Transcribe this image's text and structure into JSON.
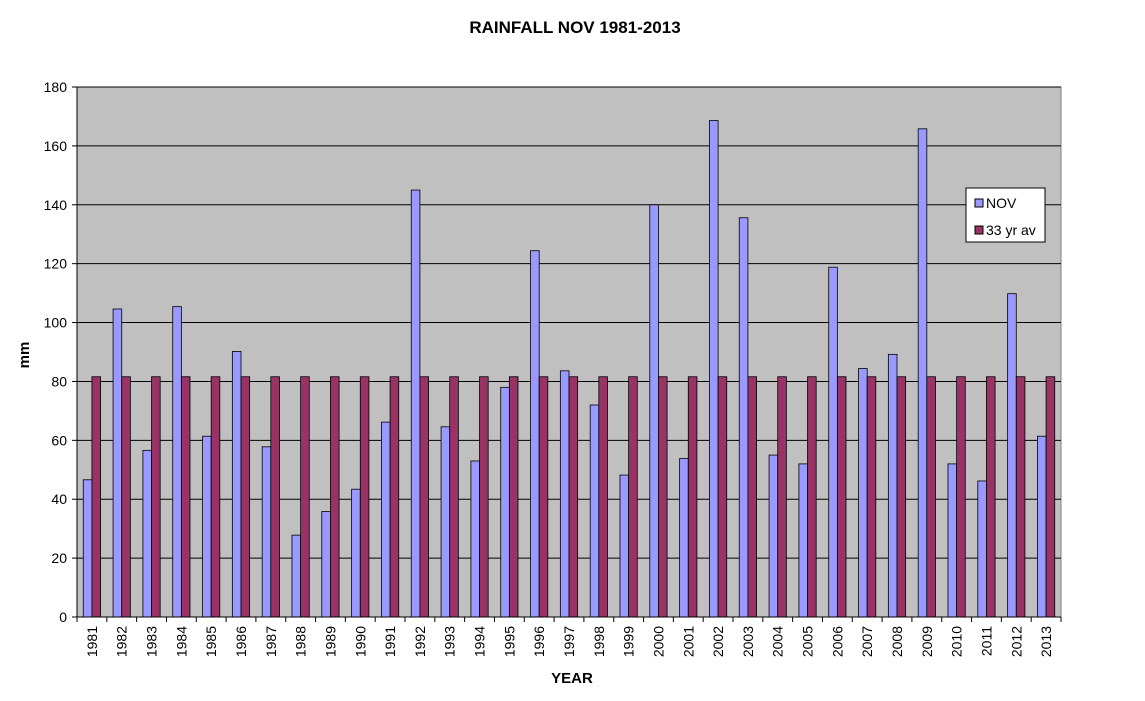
{
  "chart_data": {
    "type": "bar",
    "title": "RAINFALL NOV 1981-2013",
    "xlabel": "YEAR",
    "ylabel": "mm",
    "ylim": [
      0,
      180
    ],
    "yticks": [
      0,
      20,
      40,
      60,
      80,
      100,
      120,
      140,
      160,
      180
    ],
    "grid": true,
    "legend_position": "right",
    "plot_background": "#c0c0c0",
    "categories": [
      "1981",
      "1982",
      "1983",
      "1984",
      "1985",
      "1986",
      "1987",
      "1988",
      "1989",
      "1990",
      "1991",
      "1992",
      "1993",
      "1994",
      "1995",
      "1996",
      "1997",
      "1998",
      "1999",
      "2000",
      "2001",
      "2002",
      "2003",
      "2004",
      "2005",
      "2006",
      "2007",
      "2008",
      "2009",
      "2010",
      "2011",
      "2012",
      "2013"
    ],
    "series": [
      {
        "name": "NOV",
        "color": "#9999ff",
        "values": [
          46.6,
          104.6,
          56.6,
          105.4,
          61.4,
          90.2,
          57.8,
          27.8,
          35.8,
          43.4,
          66.2,
          145.0,
          64.6,
          53.0,
          78.0,
          124.4,
          83.6,
          72.0,
          48.2,
          140.0,
          53.8,
          168.6,
          135.6,
          55.0,
          52.0,
          118.8,
          84.4,
          89.2,
          165.8,
          52.0,
          46.2,
          109.8,
          61.4
        ]
      },
      {
        "name": "33 yr av",
        "color": "#993366",
        "values": [
          81.6,
          81.6,
          81.6,
          81.6,
          81.6,
          81.6,
          81.6,
          81.6,
          81.6,
          81.6,
          81.6,
          81.6,
          81.6,
          81.6,
          81.6,
          81.6,
          81.6,
          81.6,
          81.6,
          81.6,
          81.6,
          81.6,
          81.6,
          81.6,
          81.6,
          81.6,
          81.6,
          81.6,
          81.6,
          81.6,
          81.6,
          81.6,
          81.6
        ]
      }
    ]
  }
}
